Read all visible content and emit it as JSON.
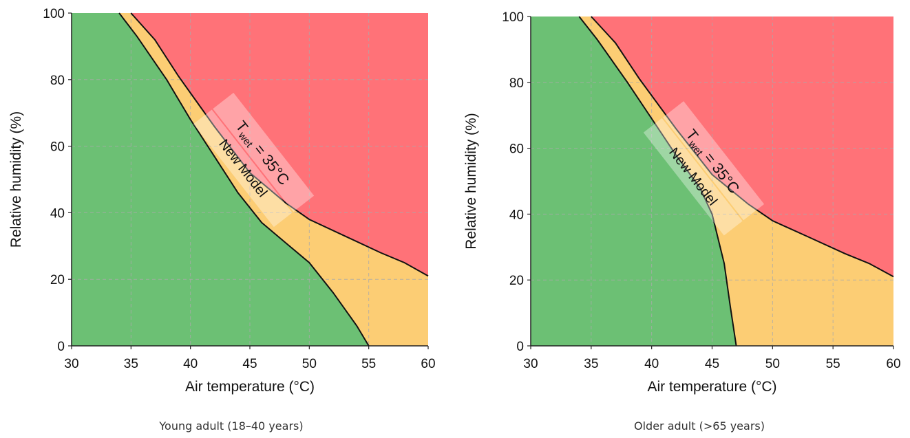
{
  "colors": {
    "safe": "#6cc074",
    "transition": "#fccd74",
    "danger": "#ff7278",
    "boundary": "#111111",
    "grid": "#aaaaaa",
    "label_band": "#ffffff"
  },
  "chart_data": [
    {
      "type": "area",
      "caption": "Young adult (18–40 years)",
      "xlabel": "Air temperature (°C)",
      "ylabel": "Relative humidity (%)",
      "xlim": [
        30,
        60
      ],
      "ylim": [
        0,
        100
      ],
      "xticks": [
        30,
        35,
        40,
        45,
        50,
        55,
        60
      ],
      "yticks": [
        0,
        20,
        40,
        60,
        80,
        100
      ],
      "grid": true,
      "regions": [
        {
          "name": "safe",
          "color": "#6cc074"
        },
        {
          "name": "transition",
          "color": "#fccd74"
        },
        {
          "name": "danger",
          "color": "#ff7278"
        }
      ],
      "boundaries": [
        {
          "id": "new-model",
          "label": "New Model",
          "points": [
            [
              34.0,
              100
            ],
            [
              35.5,
              93
            ],
            [
              38.0,
              80
            ],
            [
              40.0,
              68
            ],
            [
              42.0,
              57
            ],
            [
              44.0,
              46
            ],
            [
              46.0,
              37
            ],
            [
              48.0,
              31
            ],
            [
              50.0,
              25
            ],
            [
              52.0,
              16
            ],
            [
              54.0,
              6
            ],
            [
              55.0,
              0
            ]
          ]
        },
        {
          "id": "twet-35",
          "label_main": "T",
          "label_sub": "wet",
          "label_rest": " = 35°C",
          "points": [
            [
              35.0,
              100
            ],
            [
              37.0,
              92
            ],
            [
              39.0,
              81
            ],
            [
              42.0,
              66
            ],
            [
              45.0,
              52
            ],
            [
              48.0,
              43
            ],
            [
              50.0,
              38
            ],
            [
              53.0,
              33
            ],
            [
              56.0,
              28
            ],
            [
              58.0,
              25
            ],
            [
              60.0,
              21
            ]
          ]
        }
      ]
    },
    {
      "type": "area",
      "caption": "Older adult (>65 years)",
      "xlabel": "Air temperature (°C)",
      "ylabel": "Relative humidity (%)",
      "xlim": [
        30,
        60
      ],
      "ylim": [
        0,
        100
      ],
      "xticks": [
        30,
        35,
        40,
        45,
        50,
        55,
        60
      ],
      "yticks": [
        0,
        20,
        40,
        60,
        80,
        100
      ],
      "grid": true,
      "regions": [
        {
          "name": "safe",
          "color": "#6cc074"
        },
        {
          "name": "transition",
          "color": "#fccd74"
        },
        {
          "name": "danger",
          "color": "#ff7278"
        }
      ],
      "boundaries": [
        {
          "id": "new-model",
          "label": "New Model",
          "points": [
            [
              34.0,
              100
            ],
            [
              35.5,
              93
            ],
            [
              38.0,
              80
            ],
            [
              40.0,
              69
            ],
            [
              42.0,
              58
            ],
            [
              44.0,
              48
            ],
            [
              45.0,
              40
            ],
            [
              46.0,
              25
            ],
            [
              46.5,
              12
            ],
            [
              47.0,
              0
            ]
          ]
        },
        {
          "id": "twet-35",
          "label_main": "T",
          "label_sub": "wet",
          "label_rest": " = 35°C",
          "points": [
            [
              35.0,
              100
            ],
            [
              37.0,
              92
            ],
            [
              39.0,
              81
            ],
            [
              42.0,
              66
            ],
            [
              45.0,
              52
            ],
            [
              48.0,
              43
            ],
            [
              50.0,
              38
            ],
            [
              53.0,
              33
            ],
            [
              56.0,
              28
            ],
            [
              58.0,
              25
            ],
            [
              60.0,
              21
            ]
          ]
        }
      ]
    }
  ]
}
